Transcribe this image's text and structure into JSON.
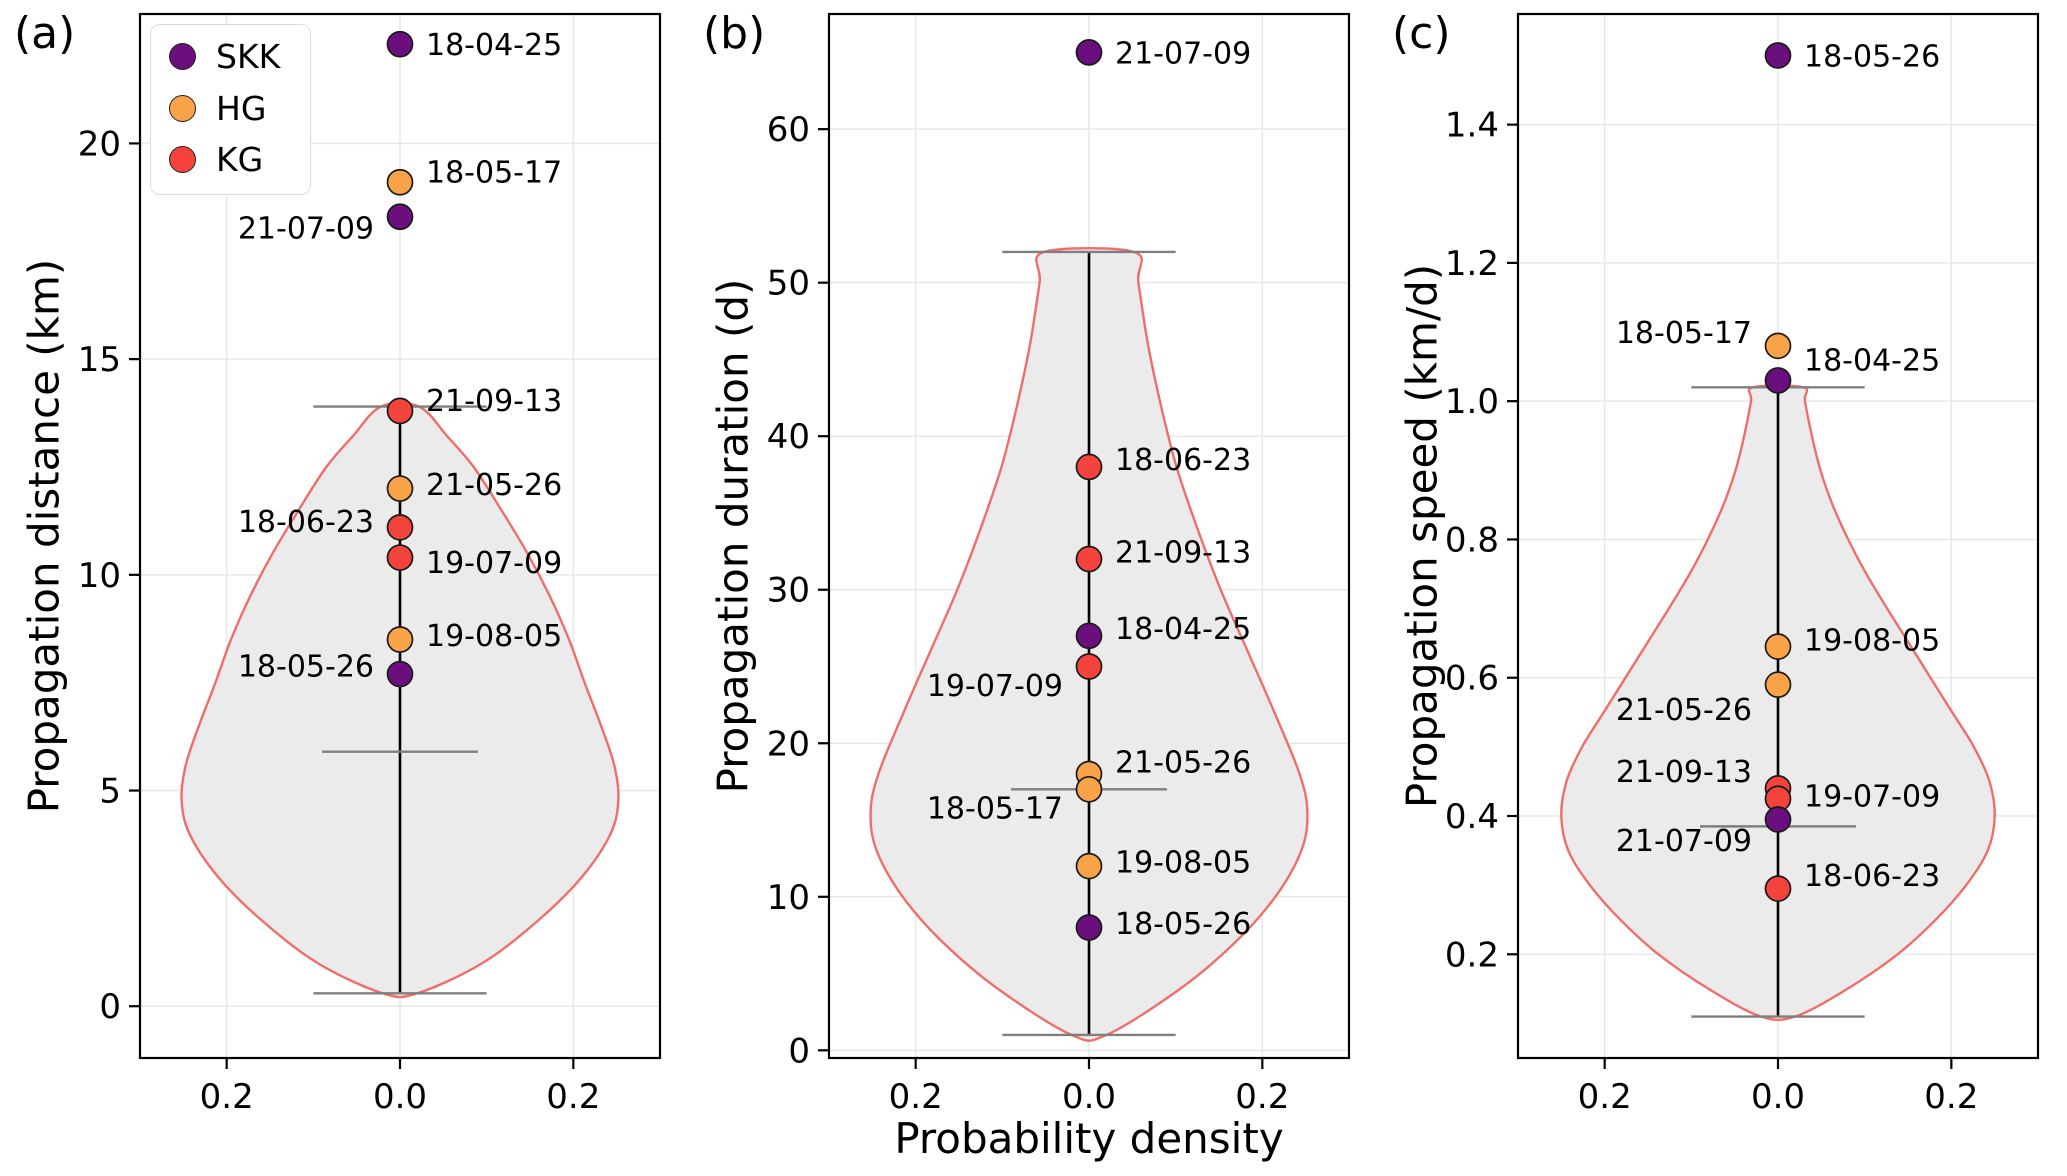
{
  "chart_data": {
    "type": "violin",
    "xlabel": "Probability density",
    "xlim": [
      -0.3,
      0.3
    ],
    "xticks": {
      "values": [
        -0.2,
        0.0,
        0.2
      ],
      "labels": [
        "0.2",
        "0.0",
        "0.2"
      ]
    },
    "groups": [
      {
        "name": "SKK",
        "color": "#6b0f7f"
      },
      {
        "name": "HG",
        "color": "#f9a348"
      },
      {
        "name": "KG",
        "color": "#f4433c"
      }
    ],
    "style": {
      "violin_fill": "#ebebeb",
      "violin_stroke": "#ef6e6a",
      "center_line": "#000000",
      "whisker_color": "#7f7f7f",
      "grid_color": "#e8e8e8",
      "point_edge": "#1a1a1a"
    },
    "panels": [
      {
        "letter": "(a)",
        "ylabel": "Propagation distance (km)",
        "ylim": [
          -1.2,
          23.0
        ],
        "yticks": {
          "values": [
            0,
            5,
            10,
            15,
            20
          ],
          "labels": [
            "0",
            "5",
            "10",
            "15",
            "20"
          ]
        },
        "box": {
          "min": 0.3,
          "max": 13.9,
          "median": 5.9
        },
        "violin_profile": [
          [
            0.3,
            0.02
          ],
          [
            1,
            0.095
          ],
          [
            2,
            0.16
          ],
          [
            3,
            0.21
          ],
          [
            4,
            0.243
          ],
          [
            4.8,
            0.252
          ],
          [
            5.6,
            0.247
          ],
          [
            6.5,
            0.232
          ],
          [
            7.5,
            0.213
          ],
          [
            8.5,
            0.195
          ],
          [
            9.5,
            0.173
          ],
          [
            10.5,
            0.147
          ],
          [
            11.5,
            0.117
          ],
          [
            12.5,
            0.085
          ],
          [
            13.2,
            0.055
          ],
          [
            13.9,
            0.022
          ]
        ],
        "points": [
          {
            "date": "18-04-25",
            "group": "SKK",
            "value": 22.3,
            "label_side": "right",
            "label_dy": 0
          },
          {
            "date": "18-05-17",
            "group": "HG",
            "value": 19.1,
            "label_side": "right",
            "label_dy": 0.25
          },
          {
            "date": "21-07-09",
            "group": "SKK",
            "value": 18.3,
            "label_side": "left",
            "label_dy": -0.25
          },
          {
            "date": "21-09-13",
            "group": "KG",
            "value": 13.8,
            "label_side": "right",
            "label_dy": 0.25
          },
          {
            "date": "21-05-26",
            "group": "HG",
            "value": 12.0,
            "label_side": "right",
            "label_dy": 0.1
          },
          {
            "date": "18-06-23",
            "group": "KG",
            "value": 11.1,
            "label_side": "left",
            "label_dy": 0.15
          },
          {
            "date": "19-07-09",
            "group": "KG",
            "value": 10.4,
            "label_side": "right",
            "label_dy": -0.1
          },
          {
            "date": "19-08-05",
            "group": "HG",
            "value": 8.5,
            "label_side": "right",
            "label_dy": 0.1
          },
          {
            "date": "18-05-26",
            "group": "SKK",
            "value": 7.7,
            "label_side": "left",
            "label_dy": 0.2
          }
        ],
        "has_legend": true
      },
      {
        "letter": "(b)",
        "ylabel": "Propagation duration (d)",
        "ylim": [
          -0.5,
          67.5
        ],
        "yticks": {
          "values": [
            0,
            10,
            20,
            30,
            40,
            50,
            60
          ],
          "labels": [
            "0",
            "10",
            "20",
            "30",
            "40",
            "50",
            "60"
          ]
        },
        "box": {
          "min": 1,
          "max": 52,
          "median": 17
        },
        "violin_profile": [
          [
            1,
            0.02
          ],
          [
            4,
            0.105
          ],
          [
            7,
            0.168
          ],
          [
            10,
            0.215
          ],
          [
            13,
            0.245
          ],
          [
            15.5,
            0.252
          ],
          [
            18,
            0.243
          ],
          [
            22,
            0.214
          ],
          [
            26,
            0.183
          ],
          [
            30,
            0.152
          ],
          [
            34,
            0.125
          ],
          [
            38,
            0.101
          ],
          [
            42,
            0.083
          ],
          [
            46,
            0.068
          ],
          [
            50,
            0.057
          ],
          [
            52,
            0.052
          ]
        ],
        "points": [
          {
            "date": "21-07-09",
            "group": "SKK",
            "value": 65,
            "label_side": "right",
            "label_dy": 0
          },
          {
            "date": "18-06-23",
            "group": "KG",
            "value": 38,
            "label_side": "right",
            "label_dy": 0.5
          },
          {
            "date": "21-09-13",
            "group": "KG",
            "value": 32,
            "label_side": "right",
            "label_dy": 0.5
          },
          {
            "date": "18-04-25",
            "group": "SKK",
            "value": 27,
            "label_side": "right",
            "label_dy": 0.5
          },
          {
            "date": "19-07-09",
            "group": "KG",
            "value": 25,
            "label_side": "left",
            "label_dy": -1.2
          },
          {
            "date": "21-05-26",
            "group": "HG",
            "value": 18,
            "label_side": "right",
            "label_dy": 0.8
          },
          {
            "date": "18-05-17",
            "group": "HG",
            "value": 17,
            "label_side": "left",
            "label_dy": -1.2
          },
          {
            "date": "19-08-05",
            "group": "HG",
            "value": 12,
            "label_side": "right",
            "label_dy": 0.3
          },
          {
            "date": "18-05-26",
            "group": "SKK",
            "value": 8,
            "label_side": "right",
            "label_dy": 0.3
          }
        ],
        "has_legend": false
      },
      {
        "letter": "(c)",
        "ylabel": "Propagation speed (km/d)",
        "ylim": [
          0.05,
          1.56
        ],
        "yticks": {
          "values": [
            0.2,
            0.4,
            0.6,
            0.8,
            1.0,
            1.2,
            1.4
          ],
          "labels": [
            "0.2",
            "0.4",
            "0.6",
            "0.8",
            "1.0",
            "1.2",
            "1.4"
          ]
        },
        "box": {
          "min": 0.11,
          "max": 1.02,
          "median": 0.385
        },
        "violin_profile": [
          [
            0.11,
            0.02
          ],
          [
            0.15,
            0.08
          ],
          [
            0.2,
            0.138
          ],
          [
            0.25,
            0.182
          ],
          [
            0.3,
            0.217
          ],
          [
            0.35,
            0.242
          ],
          [
            0.4,
            0.25
          ],
          [
            0.45,
            0.244
          ],
          [
            0.5,
            0.226
          ],
          [
            0.55,
            0.201
          ],
          [
            0.6,
            0.176
          ],
          [
            0.65,
            0.151
          ],
          [
            0.7,
            0.126
          ],
          [
            0.75,
            0.102
          ],
          [
            0.8,
            0.081
          ],
          [
            0.85,
            0.063
          ],
          [
            0.9,
            0.049
          ],
          [
            0.95,
            0.039
          ],
          [
            1.0,
            0.031
          ],
          [
            1.02,
            0.029
          ]
        ],
        "points": [
          {
            "date": "18-05-26",
            "group": "SKK",
            "value": 1.5,
            "label_side": "right",
            "label_dy": 0
          },
          {
            "date": "18-05-17",
            "group": "HG",
            "value": 1.08,
            "label_side": "left",
            "label_dy": 0.02
          },
          {
            "date": "18-04-25",
            "group": "SKK",
            "value": 1.03,
            "label_side": "right",
            "label_dy": 0.03
          },
          {
            "date": "19-08-05",
            "group": "HG",
            "value": 0.645,
            "label_side": "right",
            "label_dy": 0.01
          },
          {
            "date": "21-05-26",
            "group": "HG",
            "value": 0.59,
            "label_side": "left",
            "label_dy": -0.035
          },
          {
            "date": "21-09-13",
            "group": "KG",
            "value": 0.44,
            "label_side": "left",
            "label_dy": 0.025
          },
          {
            "date": "19-07-09",
            "group": "KG",
            "value": 0.425,
            "label_side": "right",
            "label_dy": 0.005
          },
          {
            "date": "21-07-09",
            "group": "SKK",
            "value": 0.395,
            "label_side": "left",
            "label_dy": -0.03
          },
          {
            "date": "18-06-23",
            "group": "KG",
            "value": 0.295,
            "label_side": "right",
            "label_dy": 0.02
          }
        ],
        "has_legend": false
      }
    ]
  }
}
